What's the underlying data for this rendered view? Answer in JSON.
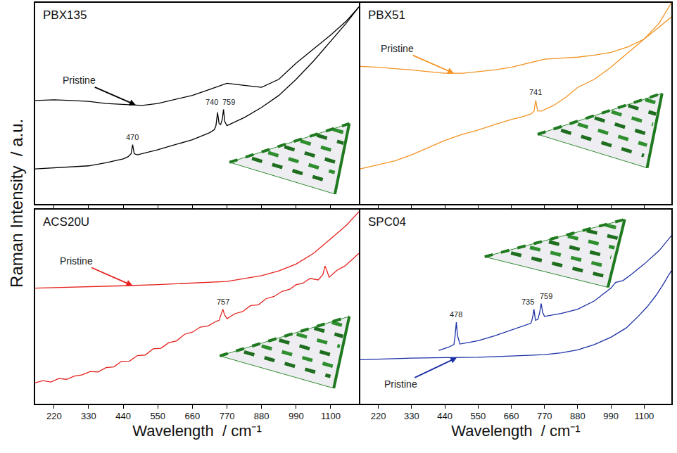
{
  "chart_data": [
    {
      "type": "line",
      "title": "PBX135",
      "ylabel": "Raman Intensity  / a.u.",
      "xlim": [
        160,
        1190
      ],
      "ylim": [
        0,
        100
      ],
      "xticks": [
        220,
        330,
        440,
        550,
        660,
        770,
        880,
        990,
        1100
      ],
      "yticks": [],
      "tick_labels": false,
      "grid": false,
      "series": [
        {
          "name": "Pristine",
          "color": "#000000",
          "x": [
            160,
            220,
            275,
            330,
            385,
            440,
            500,
            550,
            605,
            660,
            715,
            770,
            825,
            880,
            935,
            990,
            1045,
            1100,
            1150,
            1190
          ],
          "values": [
            51.5,
            51.8,
            51.5,
            51,
            50,
            49.5,
            49,
            50,
            52,
            54,
            57,
            60,
            59,
            58,
            62,
            70,
            77,
            84,
            91,
            98
          ]
        },
        {
          "color": "#000000",
          "x": [
            160,
            220,
            275,
            330,
            385,
            440,
            455,
            465,
            470,
            475,
            485,
            550,
            605,
            660,
            715,
            730,
            735,
            740,
            745,
            750,
            755,
            759,
            763,
            770,
            825,
            880,
            935,
            990,
            1045,
            1100,
            1150,
            1190
          ],
          "values": [
            17.5,
            18,
            18.5,
            19,
            20.5,
            22.5,
            23.5,
            25,
            29.5,
            25,
            24.5,
            27,
            29.5,
            32,
            35.5,
            37,
            39,
            45.5,
            40,
            39.5,
            42,
            47,
            41,
            39,
            43,
            48,
            54,
            62,
            71,
            81,
            90,
            98
          ]
        }
      ],
      "annotations": [
        {
          "text": "Pristine",
          "x": 480,
          "y": 49.2
        },
        {
          "text": "470",
          "x": 470,
          "y": 29.5
        },
        {
          "text": "740",
          "x": 722,
          "y": 47
        },
        {
          "text": "759",
          "x": 776,
          "y": 47
        }
      ]
    },
    {
      "type": "line",
      "title": "PBX51",
      "xlim": [
        160,
        1190
      ],
      "ylim": [
        0,
        100
      ],
      "xticks": [
        220,
        330,
        440,
        550,
        660,
        770,
        880,
        990,
        1100
      ],
      "yticks": [],
      "tick_labels": false,
      "grid": false,
      "series": [
        {
          "name": "Pristine",
          "color": "#f39323",
          "x": [
            160,
            220,
            275,
            330,
            385,
            440,
            500,
            550,
            605,
            660,
            715,
            770,
            825,
            880,
            935,
            990,
            1045,
            1100,
            1150,
            1190
          ],
          "values": [
            68.4,
            68,
            67.3,
            66.7,
            65.8,
            65,
            65,
            65.8,
            66.7,
            68,
            70,
            72,
            72.5,
            73,
            74,
            75.4,
            78,
            82,
            90,
            100
          ]
        },
        {
          "color": "#f39323",
          "x": [
            160,
            220,
            275,
            330,
            385,
            440,
            495,
            550,
            605,
            660,
            700,
            725,
            735,
            741,
            747,
            760,
            800,
            840,
            880,
            935,
            990,
            1045,
            1100,
            1150,
            1190
          ],
          "values": [
            17.5,
            19.5,
            21.5,
            24.5,
            28,
            31.6,
            34.5,
            36.8,
            39.5,
            42,
            43.5,
            44.8,
            46,
            51.6,
            46.3,
            46.2,
            49,
            53,
            58,
            62,
            68,
            75,
            82,
            88,
            93
          ]
        }
      ],
      "annotations": [
        {
          "text": "Pristine",
          "x": 470,
          "y": 65
        },
        {
          "text": "741",
          "x": 741,
          "y": 51.6
        }
      ]
    },
    {
      "type": "line",
      "title": "ACS20U",
      "xlabel": "Wavelength  / cm⁻¹",
      "xlim": [
        160,
        1190
      ],
      "ylim": [
        0,
        100
      ],
      "xticks": [
        220,
        330,
        440,
        550,
        660,
        770,
        880,
        990,
        1100
      ],
      "yticks": [],
      "tick_labels": "x",
      "grid": false,
      "series": [
        {
          "name": "Pristine",
          "color": "#e5211e",
          "x": [
            160,
            220,
            330,
            440,
            550,
            660,
            770,
            880,
            935,
            990,
            1045,
            1100,
            1150,
            1190
          ],
          "values": [
            59.6,
            59.8,
            60.3,
            60.8,
            61.4,
            62.2,
            63,
            66,
            68.5,
            72,
            77.5,
            85,
            92,
            99
          ]
        },
        {
          "color": "#e5211e",
          "x": [
            160,
            185,
            210,
            235,
            260,
            285,
            310,
            335,
            360,
            385,
            410,
            435,
            460,
            485,
            510,
            535,
            560,
            585,
            610,
            635,
            660,
            685,
            710,
            735,
            745,
            752,
            757,
            762,
            770,
            795,
            820,
            845,
            870,
            895,
            920,
            945,
            970,
            990,
            1010,
            1035,
            1060,
            1075,
            1082,
            1088,
            1095,
            1120,
            1145,
            1170,
            1190
          ],
          "values": [
            10.8,
            11.9,
            11.2,
            13,
            12.6,
            14.3,
            14.9,
            16.6,
            16.4,
            18.6,
            19,
            21.9,
            22,
            24.8,
            25.1,
            28.3,
            28.6,
            31.5,
            32.4,
            35.8,
            36.9,
            39.5,
            40.1,
            42.4,
            43,
            46.5,
            48.7,
            46,
            43.8,
            46.4,
            47.5,
            50.6,
            51,
            54.2,
            55.3,
            57.9,
            59,
            61.4,
            62,
            64.6,
            63.8,
            66.5,
            71,
            68.5,
            65.2,
            68.8,
            71,
            74.6,
            77.6
          ]
        }
      ],
      "annotations": [
        {
          "text": "Pristine",
          "x": 470,
          "y": 60.9
        },
        {
          "text": "757",
          "x": 757,
          "y": 48.7
        }
      ]
    },
    {
      "type": "line",
      "title": "SPC04",
      "xlabel": "Wavelength  / cm⁻¹",
      "xlim": [
        160,
        1190
      ],
      "ylim": [
        0,
        100
      ],
      "xticks": [
        220,
        330,
        440,
        550,
        660,
        770,
        880,
        990,
        1100
      ],
      "yticks": [],
      "tick_labels": "x",
      "grid": false,
      "series": [
        {
          "name": "Pristine",
          "color": "#1b2fa6",
          "x": [
            160,
            220,
            330,
            440,
            550,
            660,
            770,
            825,
            880,
            935,
            990,
            1040,
            1080,
            1110,
            1140,
            1165,
            1190
          ],
          "values": [
            22.7,
            23,
            23.5,
            23.8,
            24,
            24.6,
            25.3,
            26.2,
            27.8,
            30.5,
            34.3,
            39,
            45,
            50,
            56,
            62,
            68.6
          ]
        },
        {
          "color": "#1b2fa6",
          "x": [
            420,
            450,
            470,
            474,
            478,
            482,
            490,
            550,
            605,
            660,
            700,
            725,
            730,
            735,
            740,
            748,
            754,
            759,
            764,
            770,
            825,
            880,
            935,
            990,
            1005,
            1015,
            1030,
            1060,
            1100,
            1150,
            1190
          ],
          "values": [
            27.5,
            29,
            30.5,
            35,
            42,
            35,
            30.8,
            32.5,
            35,
            38,
            40.3,
            41.5,
            44,
            48.7,
            43,
            43.5,
            47,
            51.6,
            47,
            45,
            46.5,
            48.7,
            53,
            59.6,
            62.5,
            63,
            63.5,
            67,
            72,
            79,
            86.6
          ]
        }
      ],
      "annotations": [
        {
          "text": "Pristine",
          "x": 480,
          "y": 23.8
        },
        {
          "text": "478",
          "x": 478,
          "y": 42
        },
        {
          "text": "735",
          "x": 715,
          "y": 48.7
        },
        {
          "text": "759",
          "x": 775,
          "y": 51.6
        }
      ]
    }
  ]
}
